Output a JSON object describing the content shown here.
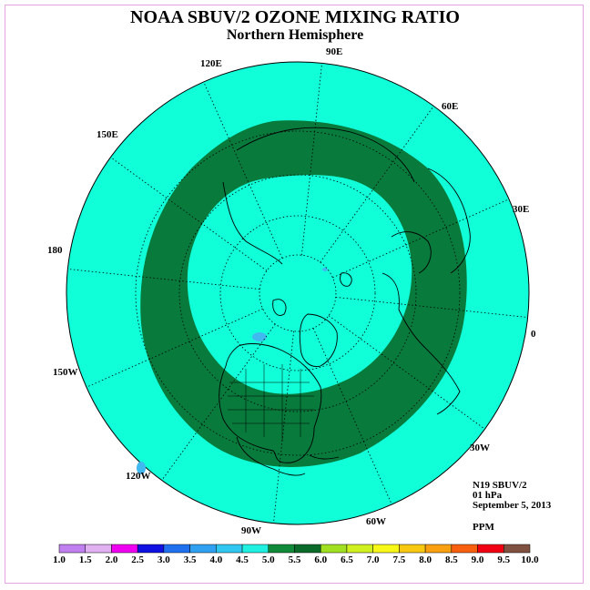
{
  "title": "NOAA SBUV/2 OZONE MIXING RATIO",
  "subtitle": "Northern Hemisphere",
  "longitude_labels": [
    "90E",
    "60E",
    "30E",
    "0",
    "30W",
    "60W",
    "90W",
    "120W",
    "150W",
    "180",
    "150E",
    "120E"
  ],
  "info": {
    "instrument": "N19 SBUV/2",
    "level": "01 hPa",
    "date": "September 5, 2013",
    "units": "PPM"
  },
  "legend": {
    "ticks": [
      "1.0",
      "1.5",
      "2.0",
      "2.5",
      "3.0",
      "3.5",
      "4.0",
      "4.5",
      "5.0",
      "5.5",
      "6.0",
      "6.5",
      "7.0",
      "7.5",
      "8.0",
      "8.5",
      "9.0",
      "9.5",
      "10.0"
    ],
    "colors": [
      "#c080f0",
      "#e0b0f0",
      "#f000f0",
      "#1010e0",
      "#2070f0",
      "#30a0f0",
      "#30c8f0",
      "#20f0e0",
      "#108a38",
      "#0a6a2a",
      "#a0e020",
      "#d0f020",
      "#f8f818",
      "#f8c810",
      "#f8a010",
      "#f86010",
      "#f00010",
      "#805040"
    ]
  },
  "map_colors": {
    "background": "#10ffd8",
    "band": "#087a3c",
    "low_patch": "#40b8f0"
  }
}
